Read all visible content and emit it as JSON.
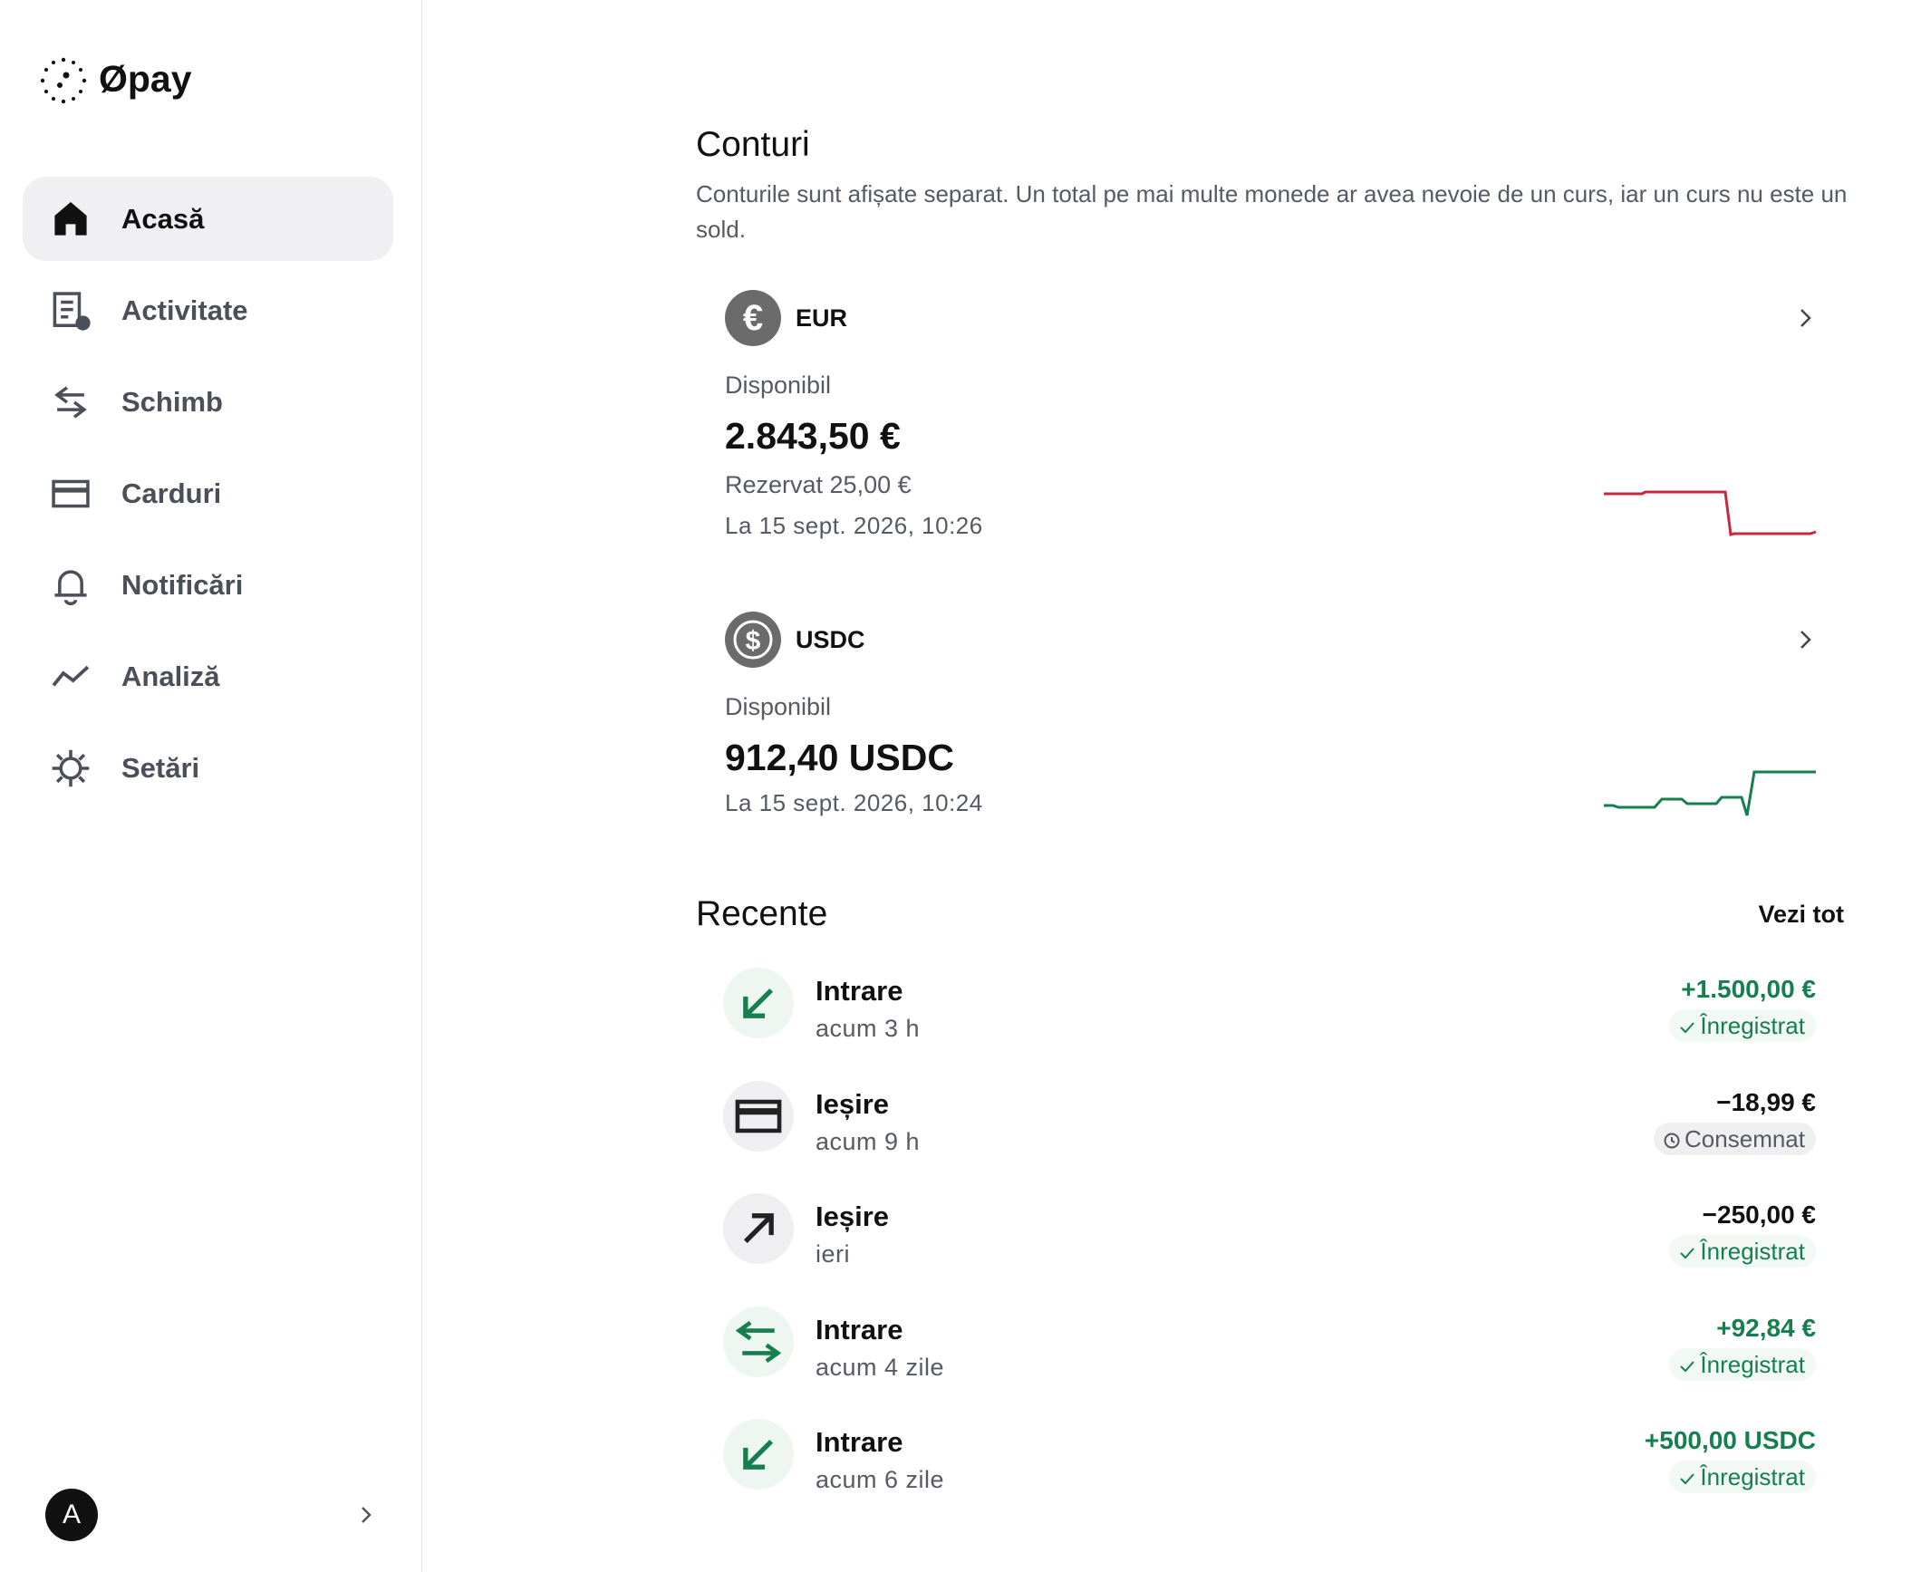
{
  "brand": "Øpay",
  "nav": [
    "Acasă",
    "Activitate",
    "Schimb",
    "Carduri",
    "Notificări",
    "Analiză",
    "Setări"
  ],
  "profile": {
    "initial": "A"
  },
  "accounts": {
    "title": "Conturi",
    "description": "Conturile sunt afișate separat. Un total pe mai multe monede ar avea nevoie de un curs, iar un curs nu este un sold.",
    "items": [
      {
        "currency": "EUR",
        "available_label": "Disponibil",
        "available": "2.843,50 €",
        "reserved": "Rezervat 25,00 €",
        "updated": "La 15 sept. 2026, 10:26"
      },
      {
        "currency": "USDC",
        "available_label": "Disponibil",
        "available": "912,40 USDC",
        "updated": "La 15 sept. 2026, 10:24"
      }
    ]
  },
  "recent": {
    "title": "Recente",
    "see_all": "Vezi tot",
    "items": [
      {
        "title": "Intrare",
        "time": "acum 3 h",
        "amount": "+1.500,00 €",
        "status": "Înregistrat"
      },
      {
        "title": "Ieșire",
        "time": "acum 9 h",
        "amount": "−18,99 €",
        "status": "Consemnat"
      },
      {
        "title": "Ieșire",
        "time": "ieri",
        "amount": "−250,00 €",
        "status": "Înregistrat"
      },
      {
        "title": "Intrare",
        "time": "acum 4 zile",
        "amount": "+92,84 €",
        "status": "Înregistrat"
      },
      {
        "title": "Intrare",
        "time": "acum 6 zile",
        "amount": "+500,00 USDC",
        "status": "Înregistrat"
      }
    ]
  }
}
